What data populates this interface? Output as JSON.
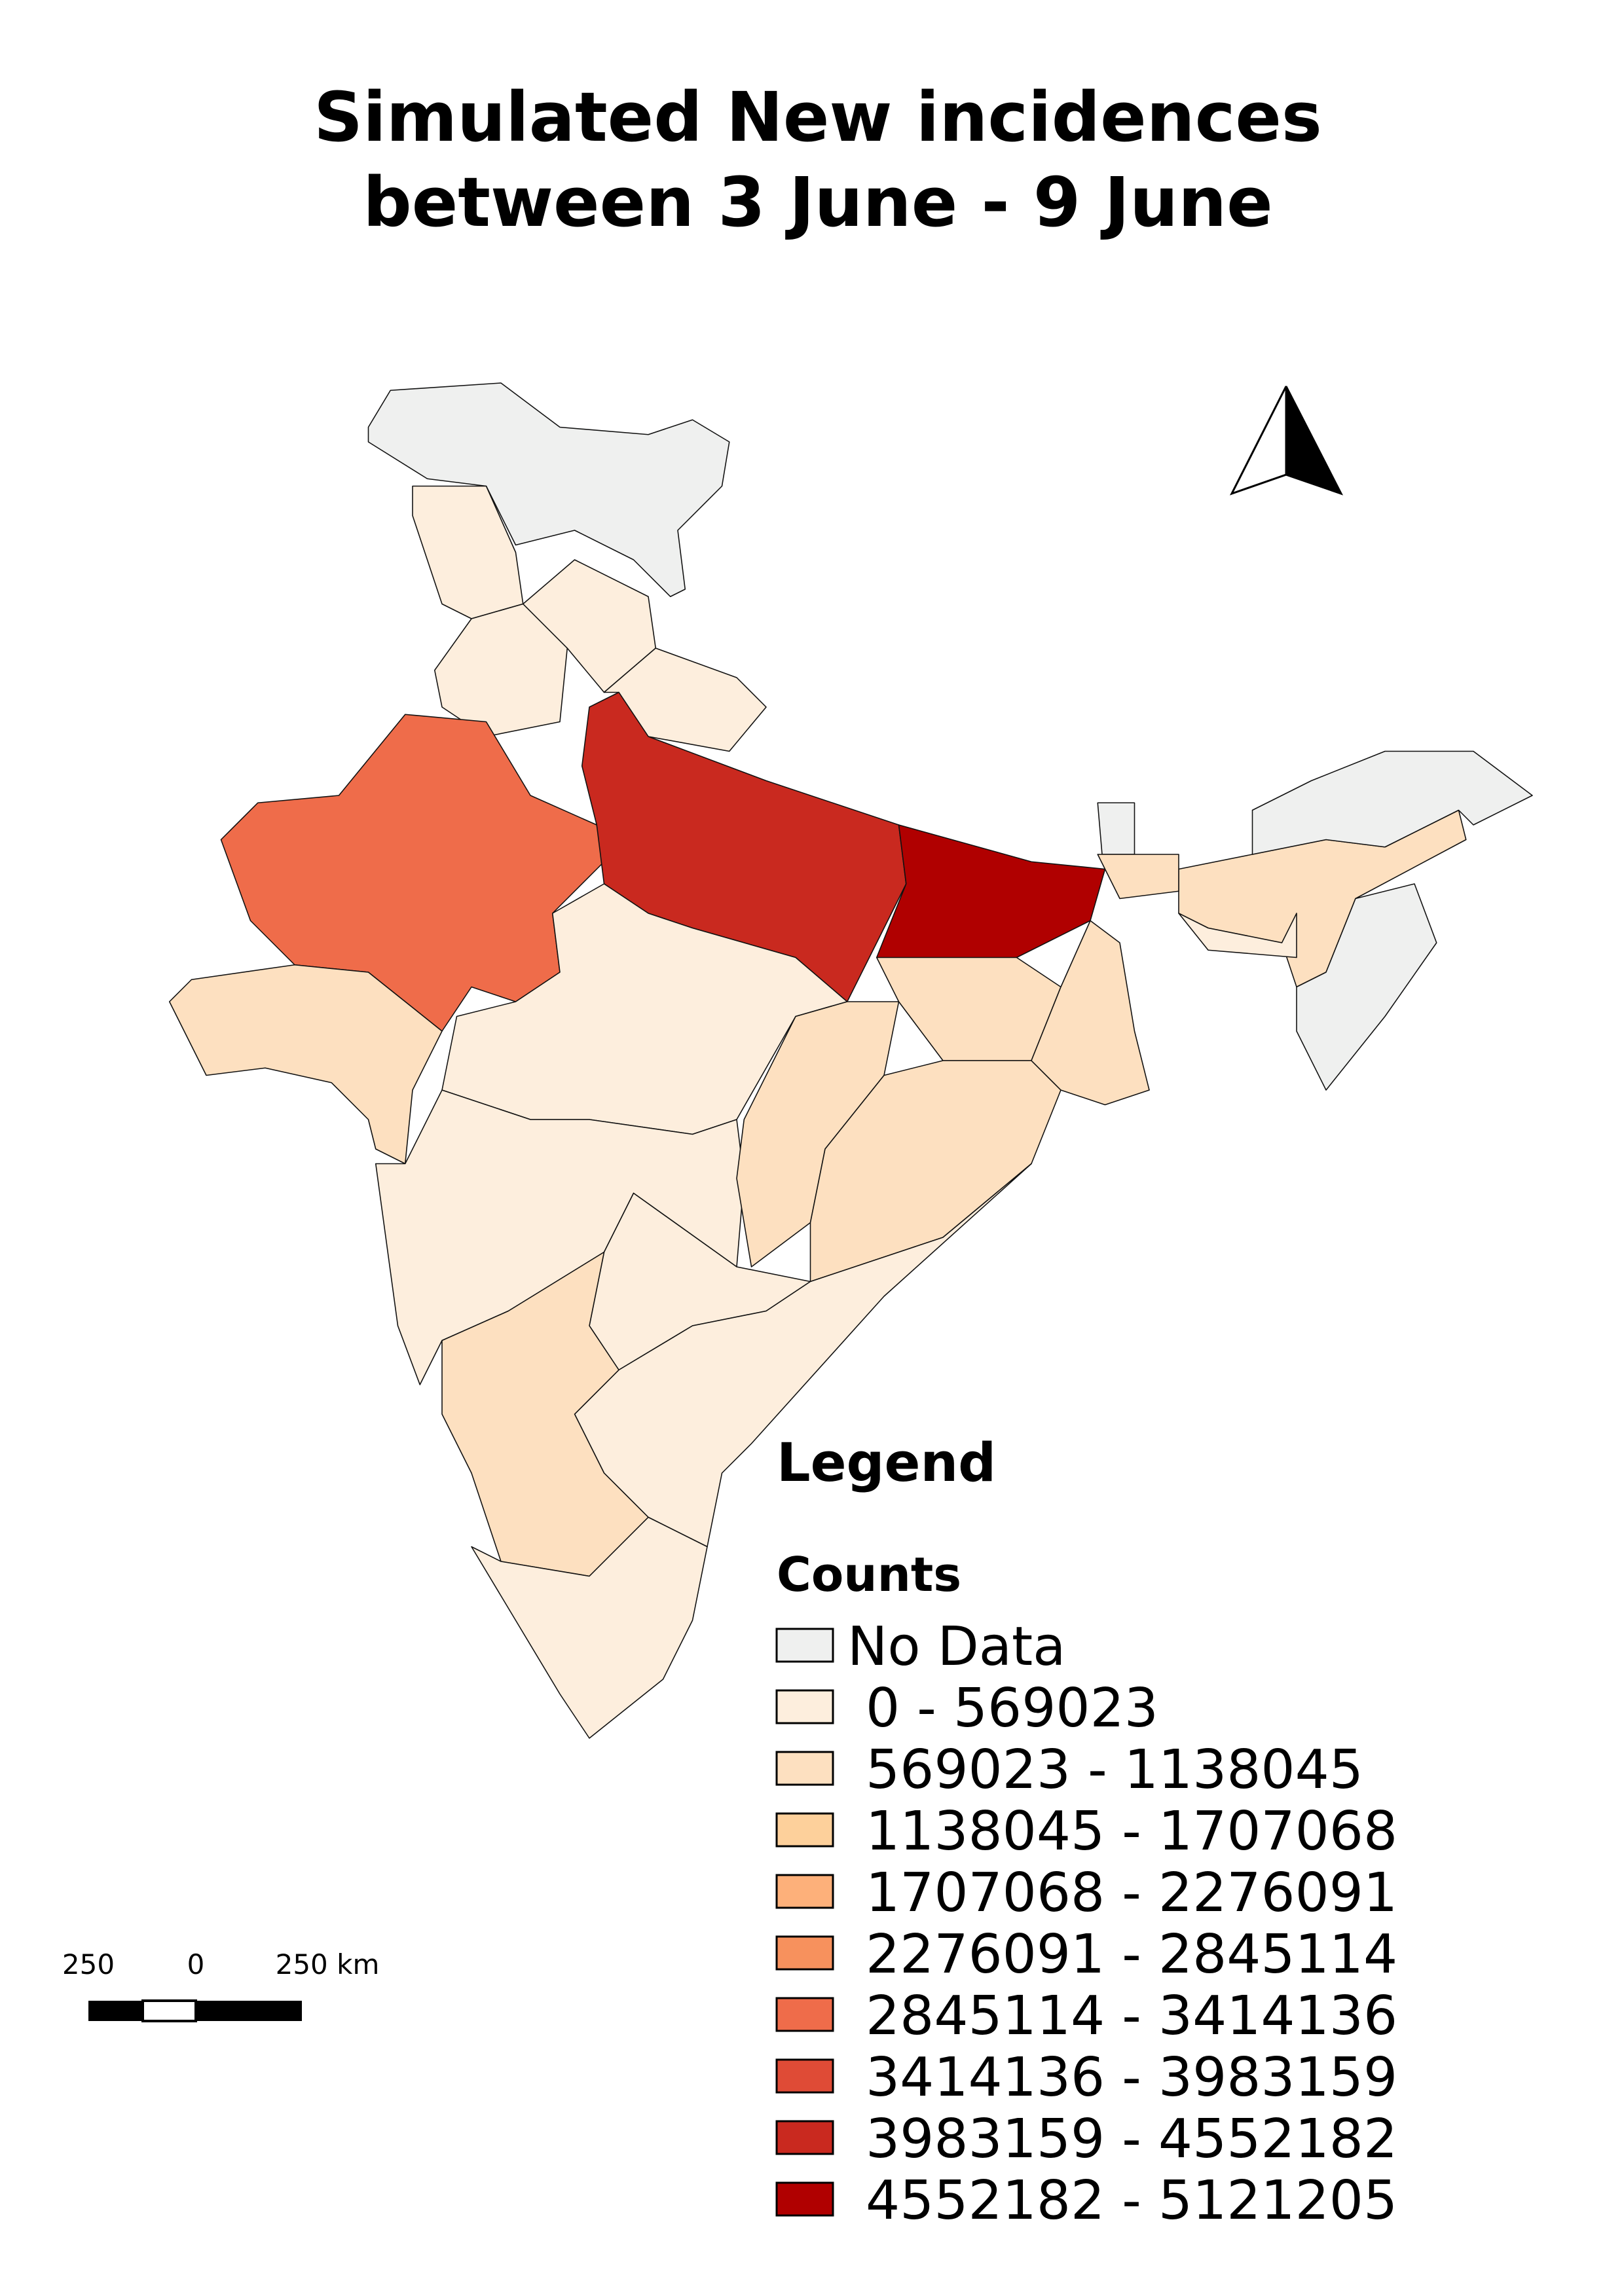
{
  "title_lines": [
    "Simulated New incidences",
    "between 3 June - 9 June"
  ],
  "legend": {
    "heading": "Legend",
    "title": "Counts",
    "items": [
      {
        "label": "No Data",
        "color": "#eff0ef"
      },
      {
        "label": "0 - 569023",
        "color": "#fdeedd"
      },
      {
        "label": "569023 - 1138045",
        "color": "#fde0c0"
      },
      {
        "label": "1138045 - 1707068",
        "color": "#fdd09b"
      },
      {
        "label": "1707068 - 2276091",
        "color": "#fdb07a"
      },
      {
        "label": "2276091 - 2845114",
        "color": "#f7915d"
      },
      {
        "label": "2845114 - 3414136",
        "color": "#ef6c4a"
      },
      {
        "label": "3414136 - 3983159",
        "color": "#df4b36"
      },
      {
        "label": "3983159 - 4552182",
        "color": "#c9291f"
      },
      {
        "label": "4552182 - 5121205",
        "color": "#b00000"
      }
    ]
  },
  "scale_bar": {
    "labels": [
      "250",
      "0",
      "250 km"
    ]
  }
}
